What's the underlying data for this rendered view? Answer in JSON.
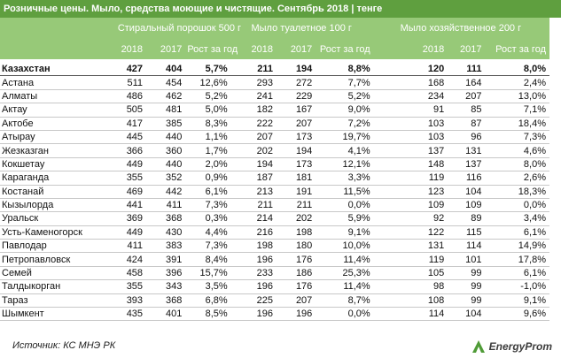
{
  "header": {
    "title": "Розничные цены. Мыло, средства моющие и чистящие. Сентябрь 2018 | тенге"
  },
  "table": {
    "groups": [
      {
        "name": "Стиральный порошок 500 г",
        "columns": [
          "2018",
          "2017",
          "Рост за год"
        ]
      },
      {
        "name": "Мыло туалетное 100 г",
        "columns": [
          "2018",
          "2017",
          "Рост за год"
        ]
      },
      {
        "name": "Мыло хозяйственное 200 г",
        "columns": [
          "2018",
          "2017",
          "Рост за год"
        ]
      }
    ],
    "rows": [
      {
        "region": "Казахстан",
        "cells": [
          "427",
          "404",
          "5,7%",
          "211",
          "194",
          "8,8%",
          "120",
          "111",
          "8,0%"
        ]
      },
      {
        "region": "Астана",
        "cells": [
          "511",
          "454",
          "12,6%",
          "293",
          "272",
          "7,7%",
          "168",
          "164",
          "2,4%"
        ]
      },
      {
        "region": "Алматы",
        "cells": [
          "486",
          "462",
          "5,2%",
          "241",
          "229",
          "5,2%",
          "234",
          "207",
          "13,0%"
        ]
      },
      {
        "region": "Актау",
        "cells": [
          "505",
          "481",
          "5,0%",
          "182",
          "167",
          "9,0%",
          "91",
          "85",
          "7,1%"
        ]
      },
      {
        "region": "Актобе",
        "cells": [
          "417",
          "385",
          "8,3%",
          "222",
          "207",
          "7,2%",
          "103",
          "87",
          "18,4%"
        ]
      },
      {
        "region": "Атырау",
        "cells": [
          "445",
          "440",
          "1,1%",
          "207",
          "173",
          "19,7%",
          "103",
          "96",
          "7,3%"
        ]
      },
      {
        "region": "Жезказган",
        "cells": [
          "366",
          "360",
          "1,7%",
          "202",
          "194",
          "4,1%",
          "137",
          "131",
          "4,6%"
        ]
      },
      {
        "region": "Кокшетау",
        "cells": [
          "449",
          "440",
          "2,0%",
          "194",
          "173",
          "12,1%",
          "148",
          "137",
          "8,0%"
        ]
      },
      {
        "region": "Караганда",
        "cells": [
          "355",
          "352",
          "0,9%",
          "187",
          "181",
          "3,3%",
          "119",
          "116",
          "2,6%"
        ]
      },
      {
        "region": "Костанай",
        "cells": [
          "469",
          "442",
          "6,1%",
          "213",
          "191",
          "11,5%",
          "123",
          "104",
          "18,3%"
        ]
      },
      {
        "region": "Кызылорда",
        "cells": [
          "441",
          "411",
          "7,3%",
          "211",
          "211",
          "0,0%",
          "109",
          "109",
          "0,0%"
        ]
      },
      {
        "region": "Уральск",
        "cells": [
          "369",
          "368",
          "0,3%",
          "214",
          "202",
          "5,9%",
          "92",
          "89",
          "3,4%"
        ]
      },
      {
        "region": "Усть-Каменогорск",
        "cells": [
          "449",
          "430",
          "4,4%",
          "216",
          "198",
          "9,1%",
          "122",
          "115",
          "6,1%"
        ]
      },
      {
        "region": "Павлодар",
        "cells": [
          "411",
          "383",
          "7,3%",
          "198",
          "180",
          "10,0%",
          "131",
          "114",
          "14,9%"
        ]
      },
      {
        "region": "Петропавловск",
        "cells": [
          "424",
          "391",
          "8,4%",
          "196",
          "176",
          "11,4%",
          "119",
          "101",
          "17,8%"
        ]
      },
      {
        "region": "Семей",
        "cells": [
          "458",
          "396",
          "15,7%",
          "233",
          "186",
          "25,3%",
          "105",
          "99",
          "6,1%"
        ]
      },
      {
        "region": "Талдыкорган",
        "cells": [
          "355",
          "343",
          "3,5%",
          "196",
          "176",
          "11,4%",
          "98",
          "99",
          "-1,0%"
        ]
      },
      {
        "region": "Тараз",
        "cells": [
          "393",
          "368",
          "6,8%",
          "225",
          "207",
          "8,7%",
          "108",
          "99",
          "9,1%"
        ]
      },
      {
        "region": "Шымкент",
        "cells": [
          "435",
          "401",
          "8,5%",
          "196",
          "196",
          "0,0%",
          "114",
          "104",
          "9,6%"
        ]
      }
    ]
  },
  "footer": {
    "source": "Источник: КС МНЭ РК",
    "logo": "EnergyProm"
  }
}
